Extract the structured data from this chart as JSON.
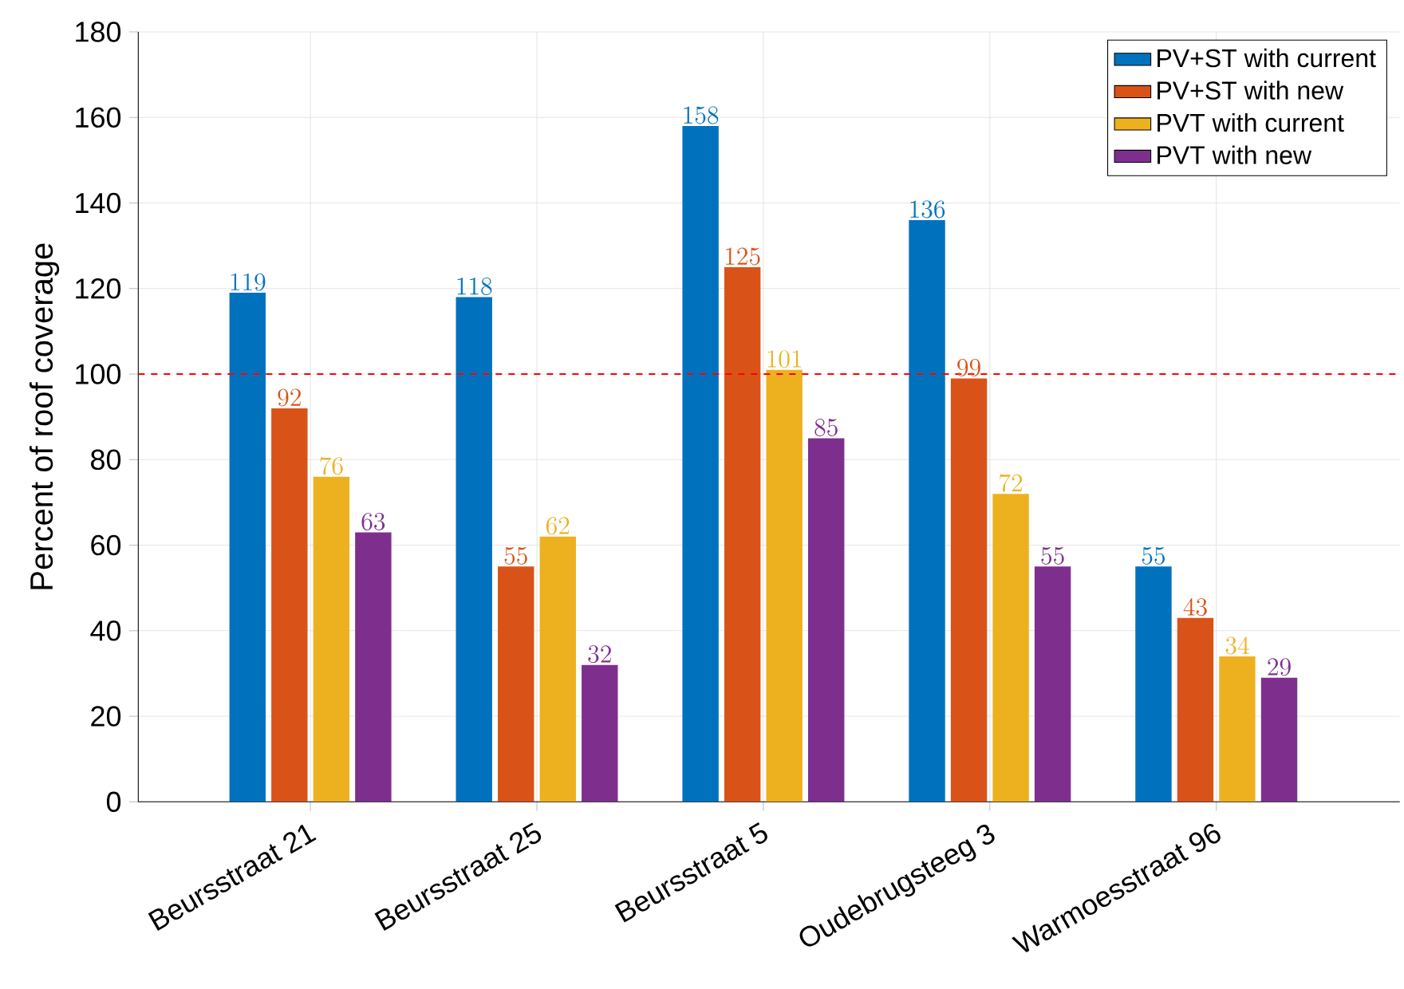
{
  "chart_data": {
    "type": "bar",
    "ylabel": "Percent of roof coverage",
    "categories": [
      "Beursstraat 21",
      "Beursstraat 25",
      "Beursstraat 5",
      "Oudebrugsteeg 3",
      "Warmoesstraat 96"
    ],
    "series": [
      {
        "name": "PV+ST with current",
        "color": "#0072bd",
        "values": [
          119,
          118,
          158,
          136,
          55
        ]
      },
      {
        "name": "PV+ST with new",
        "color": "#d95319",
        "values": [
          92,
          55,
          125,
          99,
          43
        ]
      },
      {
        "name": "PVT with current",
        "color": "#edb120",
        "values": [
          76,
          62,
          101,
          72,
          34
        ]
      },
      {
        "name": "PVT with new",
        "color": "#7e2f8e",
        "values": [
          63,
          32,
          85,
          55,
          29
        ]
      }
    ],
    "ylim": [
      0,
      180
    ],
    "yticks": [
      0,
      20,
      40,
      60,
      80,
      100,
      120,
      140,
      160,
      180
    ],
    "grid": true,
    "legend": "top right",
    "data_labels": true,
    "ref_lines": [
      {
        "axis": "y",
        "value": 100,
        "color": "#ff0000",
        "line_style": "dashed"
      }
    ]
  }
}
